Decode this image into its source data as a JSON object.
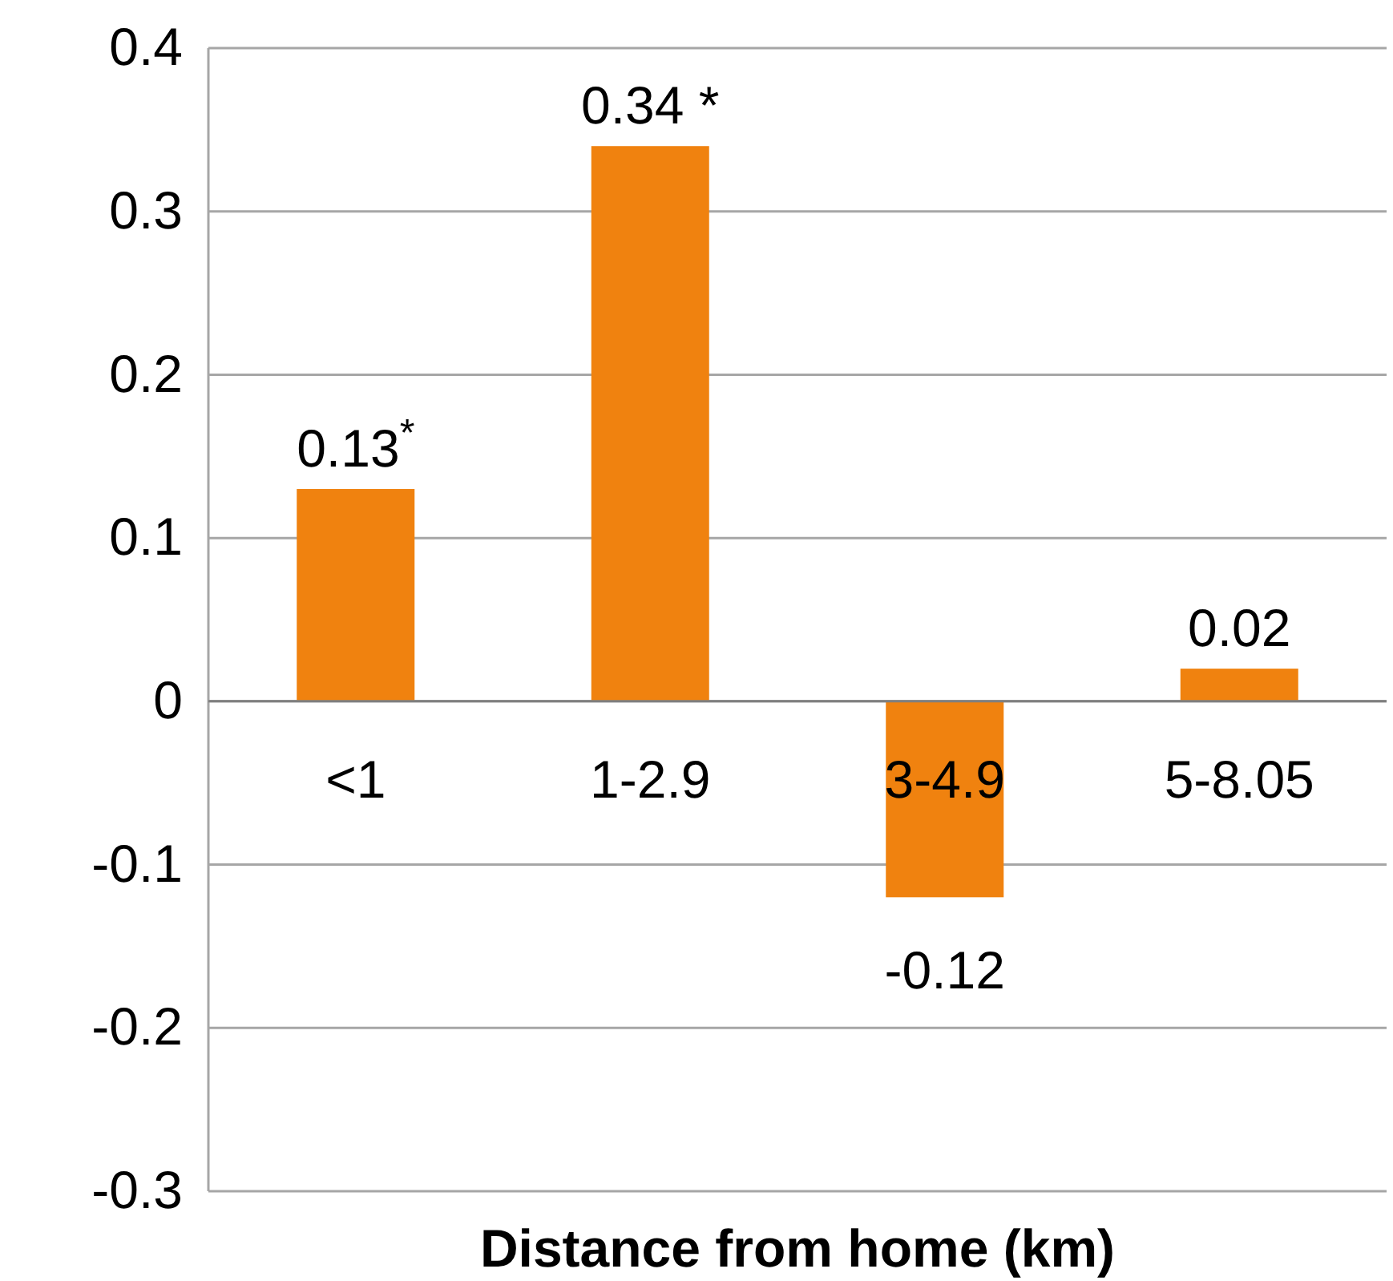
{
  "chart_data": {
    "type": "bar",
    "xlabel": "Distance from home (km)",
    "categories": [
      "<1",
      "1-2.9",
      "3-4.9",
      "5-8.05"
    ],
    "values": [
      0.13,
      0.34,
      -0.12,
      0.02
    ],
    "color": "#f0820f",
    "value_labels": [
      "0.13$^{*}$",
      "0.34 *",
      "-0.12",
      "0.02"
    ],
    "ylim": [
      -0.3,
      0.4
    ],
    "yticks": [
      -0.3,
      -0.2,
      -0.1,
      0,
      0.1,
      0.2,
      0.3,
      0.4
    ],
    "grid": "y"
  }
}
